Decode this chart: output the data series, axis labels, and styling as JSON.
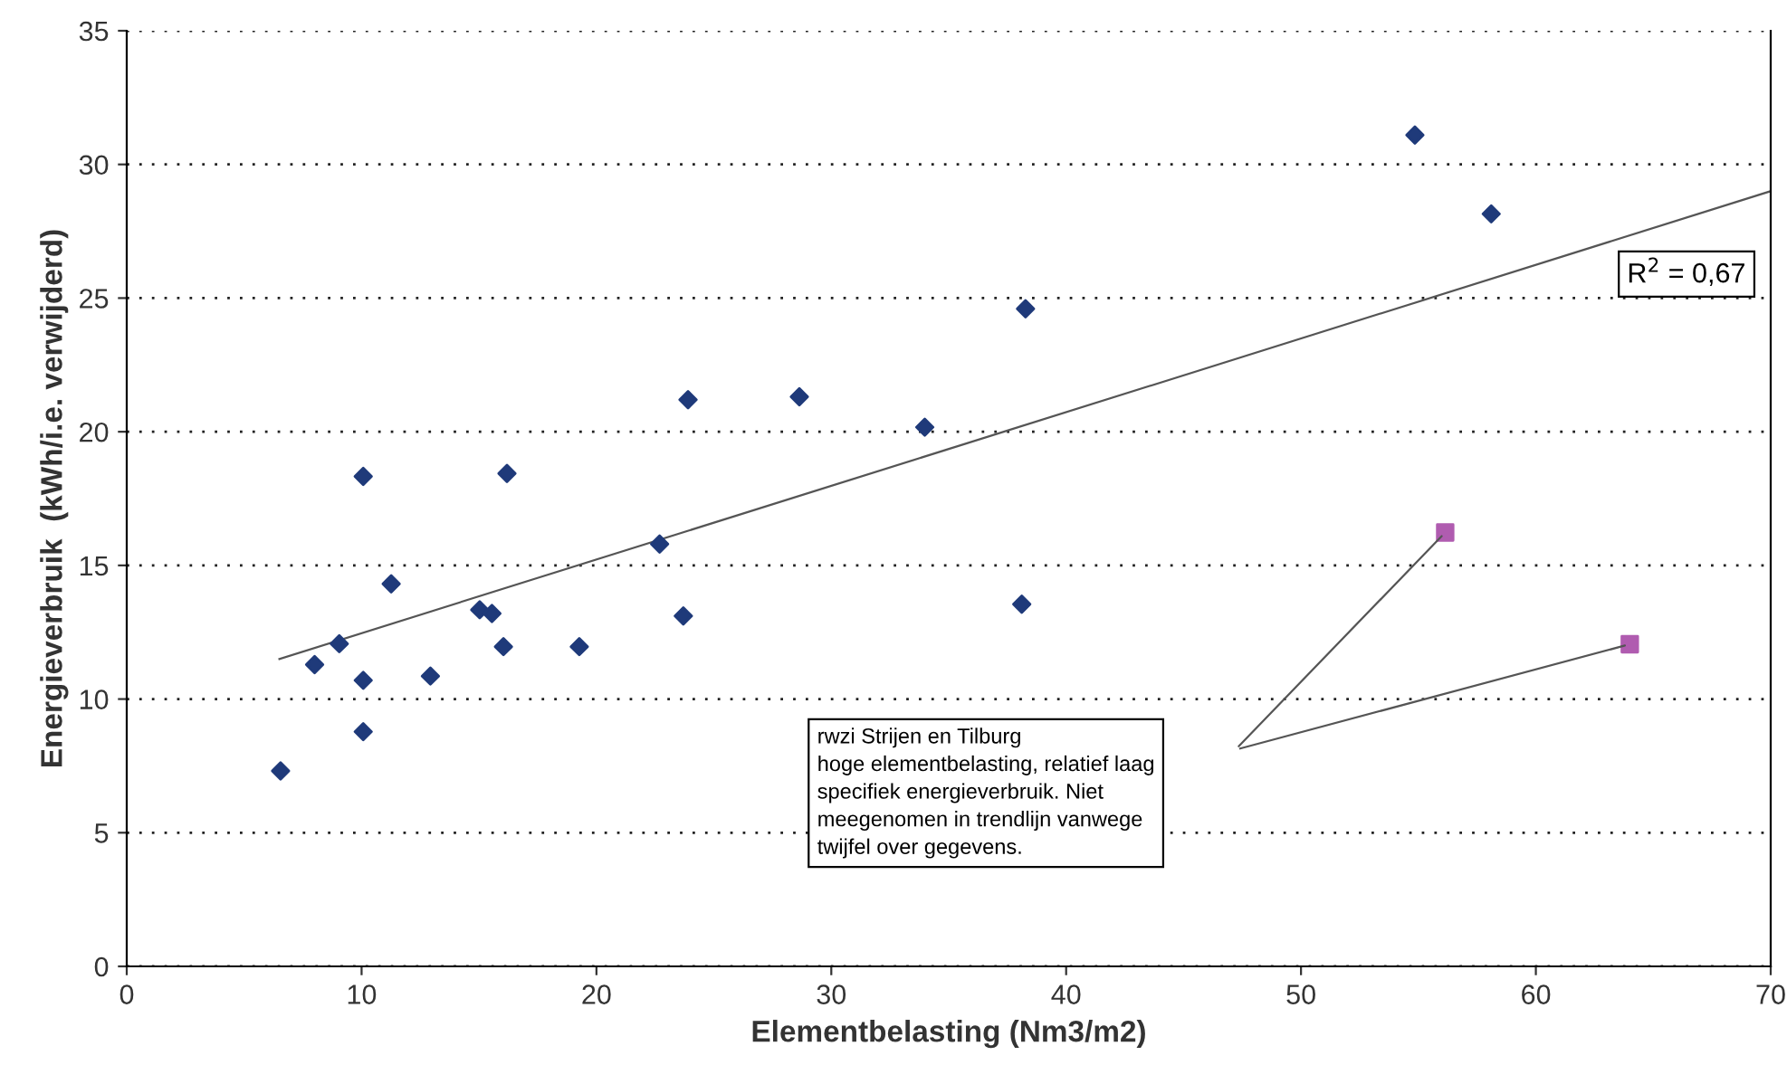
{
  "chart_data": {
    "type": "scatter",
    "xlabel": "Elementbelasting (Nm3/m2)",
    "ylabel": "Energieverbruik  (kWh/i.e. verwijderd)",
    "xlim": [
      0,
      70
    ],
    "ylim": [
      0,
      35
    ],
    "xticks": [
      0,
      10,
      20,
      30,
      40,
      50,
      60,
      70
    ],
    "yticks": [
      0,
      5,
      10,
      15,
      20,
      25,
      30,
      35
    ],
    "grid": "y",
    "legend": false,
    "series": [
      {
        "color": "#1f3a7a",
        "marker": "diamond",
        "x": [
          6.55,
          8.0,
          9.05,
          10.07,
          10.07,
          10.07,
          11.26,
          12.93,
          15.03,
          15.55,
          16.04,
          16.19,
          19.27,
          22.69,
          23.7,
          23.9,
          28.64,
          33.98,
          38.11,
          38.27,
          54.85,
          58.1
        ],
        "values": [
          7.31,
          11.29,
          12.07,
          18.33,
          10.7,
          8.78,
          14.31,
          10.86,
          13.34,
          13.2,
          11.96,
          18.44,
          11.96,
          15.8,
          13.11,
          21.2,
          21.31,
          20.17,
          13.55,
          24.6,
          31.1,
          28.15
        ]
      },
      {
        "color": "#b05cb0",
        "marker": "square",
        "x": [
          56.14,
          64.0
        ],
        "values": [
          16.23,
          12.05
        ]
      },
      {
        "type": "line",
        "color": "#555555",
        "marker": "none",
        "x": [
          6.5,
          70
        ],
        "values": [
          11.5,
          29.0
        ]
      }
    ],
    "annotations": [
      "R$^{2}$ = 0,67",
      "rwzi Strijen en Tilburg\nhoge elementbelasting, relatief laag\nspecifiek energieverbruik. Niet\nmeegenomen in trendlijn vanwege\ntwijfel over gegevens."
    ]
  }
}
